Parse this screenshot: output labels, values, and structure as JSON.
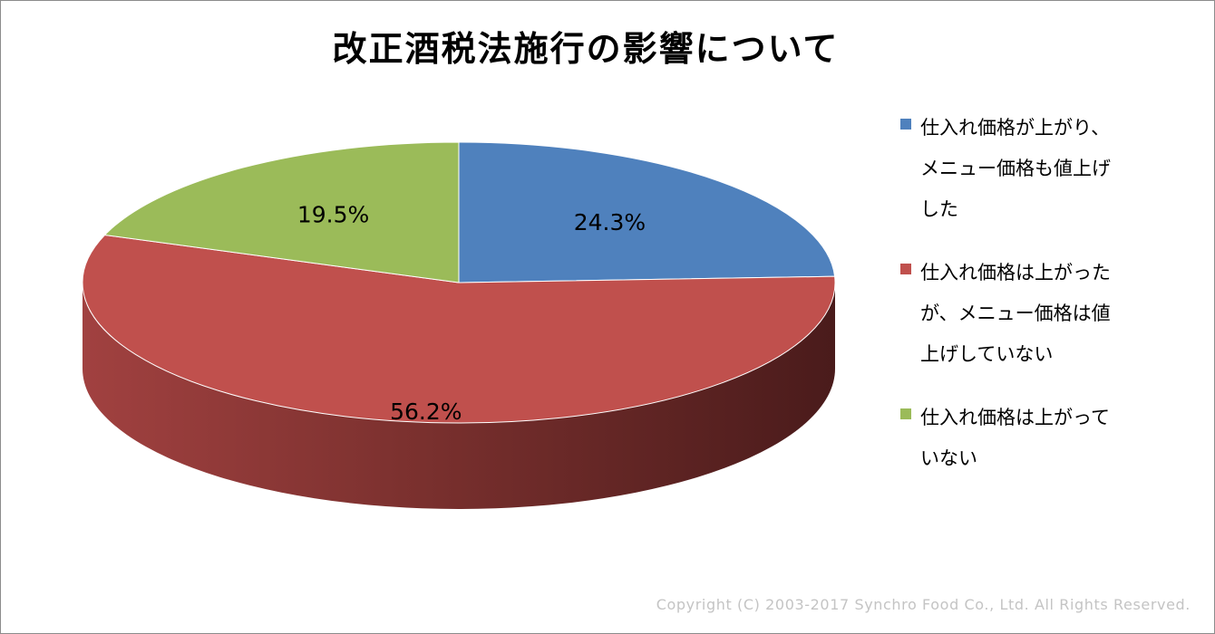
{
  "chart_data": {
    "type": "pie",
    "title": "改正酒税法施行の影響について",
    "categories": [
      "仕入れ価格が上がり、\nメニュー価格も値上げ\nした",
      "仕入れ価格は上がった\nが、メニュー価格は値\n上げしていない",
      "仕入れ価格は上がって\nいない"
    ],
    "values": [
      24.3,
      56.2,
      19.5
    ],
    "data_labels": [
      "24.3%",
      "56.2%",
      "19.5%"
    ],
    "colors": [
      "#4f81bd",
      "#c0504d",
      "#9bbb59"
    ],
    "legend_position": "right",
    "style": "3d"
  },
  "footer": {
    "copyright": "Copyright (C) 2003-2017  Synchro Food Co., Ltd. All Rights Reserved."
  }
}
